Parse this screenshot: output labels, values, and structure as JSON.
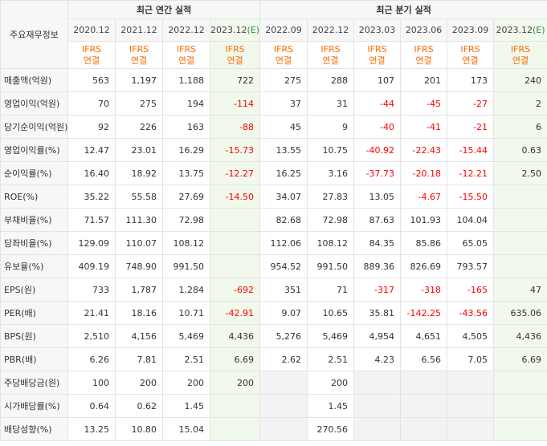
{
  "header": {
    "corner_label": "주요재무정보",
    "annual_title": "최근 연간 실적",
    "quarterly_title": "최근 분기 실적",
    "annual_periods": [
      {
        "label": "2020.12",
        "estimate": false
      },
      {
        "label": "2021.12",
        "estimate": false
      },
      {
        "label": "2022.12",
        "estimate": false
      },
      {
        "label": "2023.12",
        "estimate": true
      }
    ],
    "quarterly_periods": [
      {
        "label": "2022.09",
        "estimate": false
      },
      {
        "label": "2022.12",
        "estimate": false
      },
      {
        "label": "2023.03",
        "estimate": false
      },
      {
        "label": "2023.06",
        "estimate": false
      },
      {
        "label": "2023.09",
        "estimate": false
      },
      {
        "label": "2023.12",
        "estimate": true
      }
    ],
    "estimate_mark": "(E)",
    "accounting_line1": "IFRS",
    "accounting_line2": "연결"
  },
  "colors": {
    "negative": "#ff0000",
    "accounting": "#ff6a00",
    "estimate_bg": "#f1f8ec",
    "estimate_mark": "#2e8b57",
    "empty_bg": "#f3f3f3"
  },
  "rows": [
    {
      "label": "매출액(억원)",
      "values": [
        "563",
        "1,197",
        "1,188",
        "722",
        "275",
        "288",
        "107",
        "201",
        "173",
        "240"
      ]
    },
    {
      "label": "영업이익(억원)",
      "values": [
        "70",
        "275",
        "194",
        "-114",
        "37",
        "31",
        "-44",
        "-45",
        "-27",
        "2"
      ]
    },
    {
      "label": "당기순이익(억원)",
      "values": [
        "92",
        "226",
        "163",
        "-88",
        "45",
        "9",
        "-40",
        "-41",
        "-21",
        "6"
      ]
    },
    {
      "label": "영업이익률(%)",
      "values": [
        "12.47",
        "23.01",
        "16.29",
        "-15.73",
        "13.55",
        "10.75",
        "-40.92",
        "-22.43",
        "-15.44",
        "0.63"
      ]
    },
    {
      "label": "순이익률(%)",
      "values": [
        "16.40",
        "18.92",
        "13.75",
        "-12.27",
        "16.25",
        "3.16",
        "-37.73",
        "-20.18",
        "-12.21",
        "2.50"
      ]
    },
    {
      "label": "ROE(%)",
      "values": [
        "35.22",
        "55.58",
        "27.69",
        "-14.50",
        "34.07",
        "27.83",
        "13.05",
        "-4.67",
        "-15.50",
        ""
      ]
    },
    {
      "label": "부채비율(%)",
      "values": [
        "71.57",
        "111.30",
        "72.98",
        "",
        "82.68",
        "72.98",
        "87.63",
        "101.93",
        "104.04",
        ""
      ]
    },
    {
      "label": "당좌비율(%)",
      "values": [
        "129.09",
        "110.07",
        "108.12",
        "",
        "112.06",
        "108.12",
        "84.35",
        "85.86",
        "65.05",
        ""
      ]
    },
    {
      "label": "유보율(%)",
      "values": [
        "409.19",
        "748.90",
        "991.50",
        "",
        "954.52",
        "991.50",
        "889.36",
        "826.69",
        "793.57",
        ""
      ]
    },
    {
      "label": "EPS(원)",
      "values": [
        "733",
        "1,787",
        "1,284",
        "-692",
        "351",
        "71",
        "-317",
        "-318",
        "-165",
        "47"
      ]
    },
    {
      "label": "PER(배)",
      "values": [
        "21.41",
        "18.16",
        "10.71",
        "-42.91",
        "9.07",
        "10.65",
        "35.81",
        "-142.25",
        "-43.56",
        "635.06"
      ]
    },
    {
      "label": "BPS(원)",
      "values": [
        "2,510",
        "4,156",
        "5,469",
        "4,436",
        "5,276",
        "5,469",
        "4,954",
        "4,651",
        "4,505",
        "4,436"
      ]
    },
    {
      "label": "PBR(배)",
      "values": [
        "6.26",
        "7.81",
        "2.51",
        "6.69",
        "2.62",
        "2.51",
        "4.23",
        "6.56",
        "7.05",
        "6.69"
      ]
    },
    {
      "label": "주당배당금(원)",
      "values": [
        "100",
        "200",
        "200",
        "200",
        "",
        "200",
        "",
        "",
        "",
        ""
      ]
    },
    {
      "label": "시가배당률(%)",
      "values": [
        "0.64",
        "0.62",
        "1.45",
        "",
        "",
        "1.45",
        "",
        "",
        "",
        ""
      ]
    },
    {
      "label": "배당성향(%)",
      "values": [
        "13.25",
        "10.80",
        "15.04",
        "",
        "",
        "270.56",
        "",
        "",
        "",
        ""
      ]
    }
  ],
  "group_breaks_after_rows": [
    2,
    5,
    8,
    12
  ]
}
